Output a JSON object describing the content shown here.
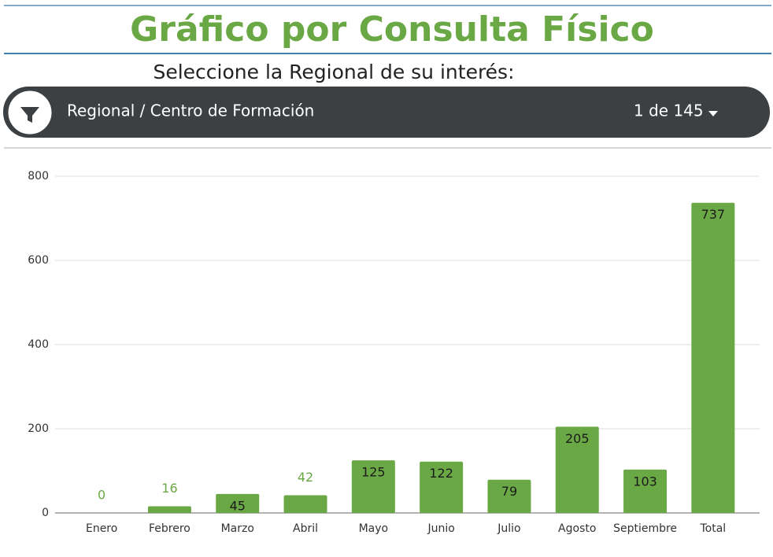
{
  "header": {
    "title": "Gráfico por Consulta Físico",
    "subtitle": "Seleccione la Regional de su interés:"
  },
  "filter": {
    "label": "Regional / Centro de Formación",
    "value": "1 de 145"
  },
  "chart_data": {
    "type": "bar",
    "categories": [
      "Enero",
      "Febrero",
      "Marzo",
      "Abril",
      "Mayo",
      "Junio",
      "Julio",
      "Agosto",
      "Septiembre",
      "Total"
    ],
    "values": [
      0,
      16,
      45,
      42,
      125,
      122,
      79,
      205,
      103,
      737
    ],
    "color": "#6aa845",
    "ylim": [
      0,
      800
    ],
    "yticks": [
      0,
      200,
      400,
      600,
      800
    ],
    "grid": true
  }
}
